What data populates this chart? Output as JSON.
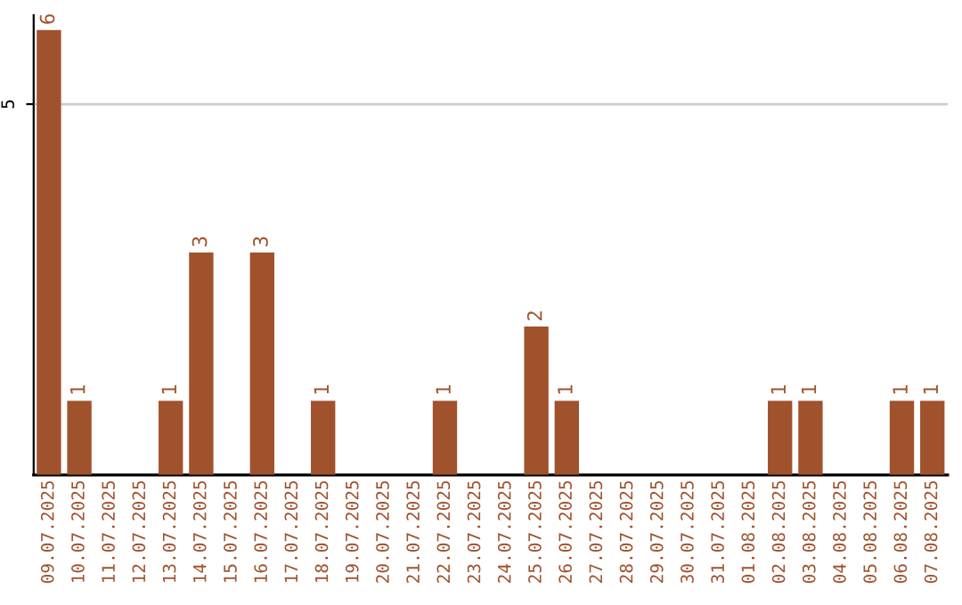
{
  "chart_data": {
    "type": "bar",
    "categories": [
      "09.07.2025",
      "10.07.2025",
      "11.07.2025",
      "12.07.2025",
      "13.07.2025",
      "14.07.2025",
      "15.07.2025",
      "16.07.2025",
      "17.07.2025",
      "18.07.2025",
      "19.07.2025",
      "20.07.2025",
      "21.07.2025",
      "22.07.2025",
      "23.07.2025",
      "24.07.2025",
      "25.07.2025",
      "26.07.2025",
      "27.07.2025",
      "28.07.2025",
      "29.07.2025",
      "30.07.2025",
      "31.07.2025",
      "01.08.2025",
      "02.08.2025",
      "03.08.2025",
      "04.08.2025",
      "05.08.2025",
      "06.08.2025",
      "07.08.2025"
    ],
    "values": [
      6,
      1,
      0,
      0,
      1,
      3,
      0,
      3,
      0,
      1,
      0,
      0,
      0,
      1,
      0,
      0,
      2,
      1,
      0,
      0,
      0,
      0,
      0,
      0,
      1,
      1,
      0,
      0,
      1,
      1
    ],
    "value_labels": [
      "6",
      "1",
      null,
      null,
      "1",
      "3",
      null,
      "3",
      null,
      "1",
      null,
      null,
      null,
      "1",
      null,
      null,
      "2",
      "1",
      null,
      null,
      null,
      null,
      null,
      null,
      "1",
      "1",
      null,
      null,
      "1",
      "1"
    ],
    "color": "#a0522d",
    "ylim": [
      0,
      6.2
    ],
    "yticks": [
      5
    ],
    "grid": "y"
  }
}
